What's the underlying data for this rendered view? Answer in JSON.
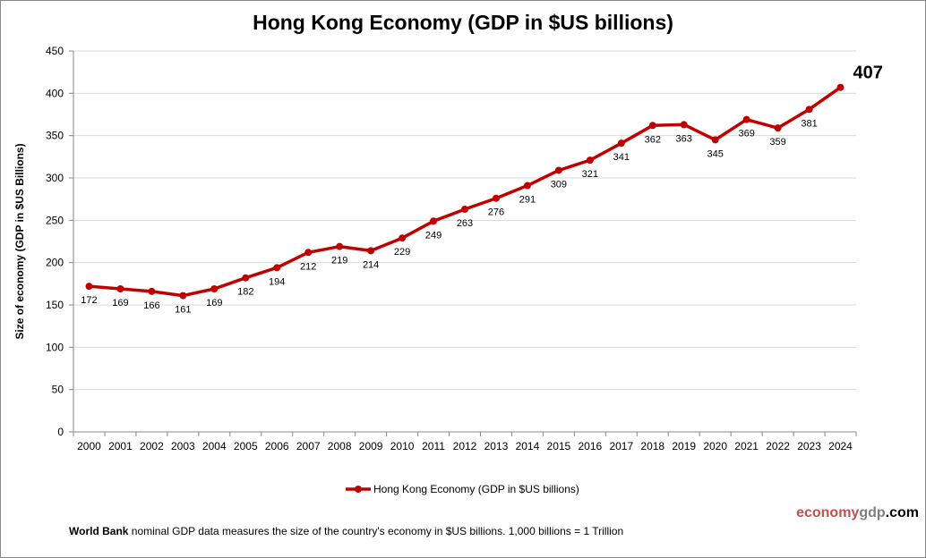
{
  "chart_data": {
    "type": "line",
    "title": "Hong Kong Economy (GDP in $US billions)",
    "ylabel": "Size of economy (GDP in $US Billions)",
    "xlabel": "",
    "categories": [
      "2000",
      "2001",
      "2002",
      "2003",
      "2004",
      "2005",
      "2006",
      "2007",
      "2008",
      "2009",
      "2010",
      "2011",
      "2012",
      "2013",
      "2014",
      "2015",
      "2016",
      "2017",
      "2018",
      "2019",
      "2020",
      "2021",
      "2022",
      "2023",
      "2024"
    ],
    "series": [
      {
        "name": "Hong Kong Economy (GDP in $US billions)",
        "values": [
          172,
          169,
          166,
          161,
          169,
          182,
          194,
          212,
          219,
          214,
          229,
          249,
          263,
          276,
          291,
          309,
          321,
          341,
          362,
          363,
          345,
          369,
          359,
          381,
          407
        ],
        "color": "#c00000"
      }
    ],
    "ylim": [
      0,
      450
    ],
    "yticks": [
      0,
      50,
      100,
      150,
      200,
      250,
      300,
      350,
      400,
      450
    ],
    "grid": true,
    "legend": "bottom"
  },
  "footer": {
    "source_bold": "World Bank",
    "text": " nominal GDP data  measures the size of the country's economy in $US billions. 1,000 billions = 1 Trillion"
  },
  "logo": {
    "part1": "economy",
    "part2": "gdp",
    "part3": ".com",
    "colors": [
      "#c0504d",
      "#7f7f7f",
      "#000000"
    ]
  }
}
